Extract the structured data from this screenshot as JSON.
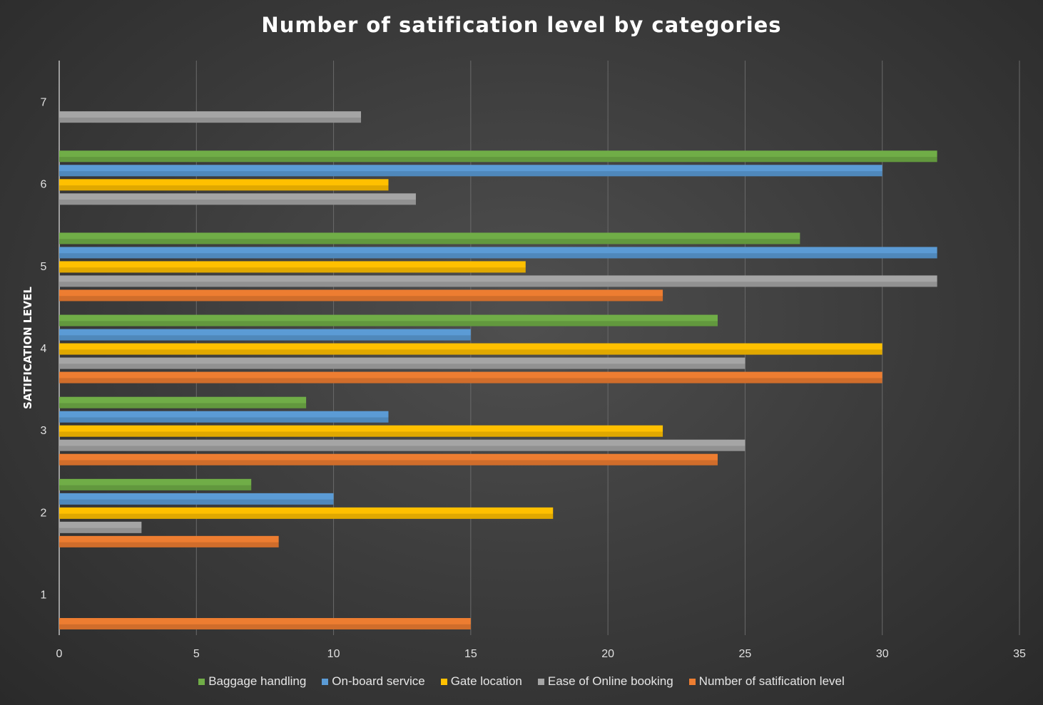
{
  "chart_data": {
    "type": "bar",
    "orientation": "horizontal",
    "title": "Number of satification  level by categories",
    "xlabel": "",
    "ylabel": "SATIFICATION LEVEL",
    "xlim": [
      0,
      35
    ],
    "x_ticks": [
      "0",
      "5",
      "10",
      "15",
      "20",
      "25",
      "30",
      "35"
    ],
    "categories": [
      "1",
      "2",
      "3",
      "4",
      "5",
      "6",
      "7"
    ],
    "grid": true,
    "legend_position": "bottom",
    "series": [
      {
        "name": "Baggage handling",
        "color": "#70ad47",
        "values": [
          null,
          7,
          9,
          24,
          27,
          32,
          null
        ]
      },
      {
        "name": "On-board service",
        "color": "#5b9bd5",
        "values": [
          null,
          10,
          12,
          15,
          32,
          30,
          null
        ]
      },
      {
        "name": "Gate location",
        "color": "#ffc000",
        "values": [
          null,
          18,
          22,
          30,
          17,
          12,
          null
        ]
      },
      {
        "name": "Ease of Online booking",
        "color": "#a5a5a5",
        "values": [
          null,
          3,
          25,
          25,
          32,
          13,
          11
        ]
      },
      {
        "name": "Number of satification level",
        "color": "#ed7d31",
        "values": [
          15,
          8,
          24,
          30,
          22,
          null,
          null
        ]
      }
    ]
  }
}
